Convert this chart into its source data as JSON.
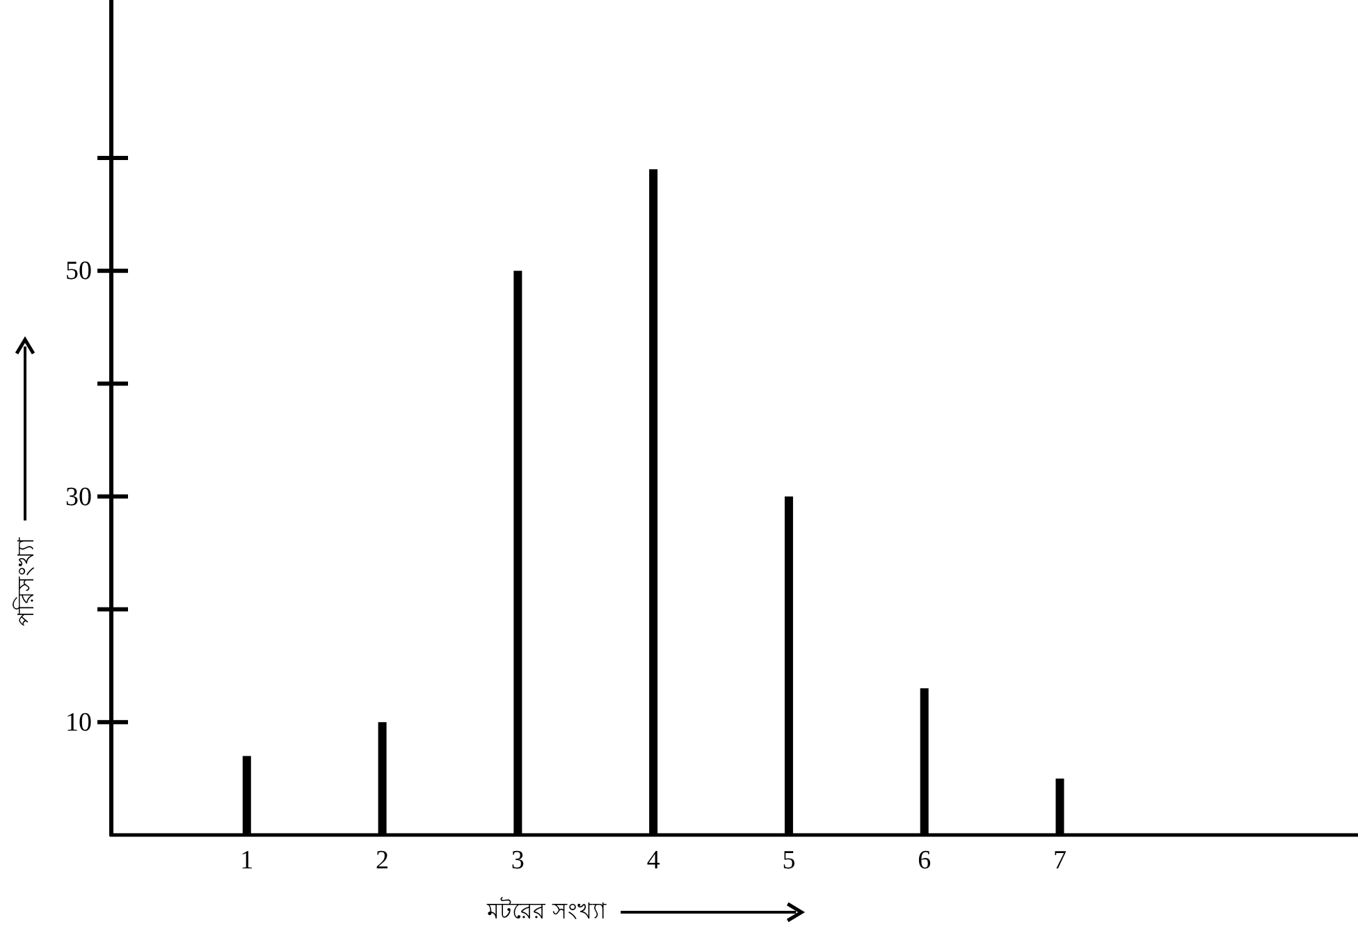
{
  "chart_data": {
    "type": "bar",
    "xlabel": "মটরের সংখ্যা",
    "ylabel": "পরিসংখ্যা",
    "x": [
      1,
      2,
      3,
      4,
      5,
      6,
      7
    ],
    "values": [
      7,
      10,
      50,
      59,
      30,
      13,
      5
    ],
    "color": "#000000",
    "xlim": [
      0,
      9.2
    ],
    "ylim": [
      0,
      74
    ],
    "xticks": [
      1,
      2,
      3,
      4,
      5,
      6,
      7
    ],
    "yticks": [
      10,
      {
        "value": 20,
        "label": null
      },
      30,
      {
        "value": 40,
        "label": null
      },
      50,
      {
        "value": 60,
        "label": null
      }
    ],
    "grid": false
  }
}
